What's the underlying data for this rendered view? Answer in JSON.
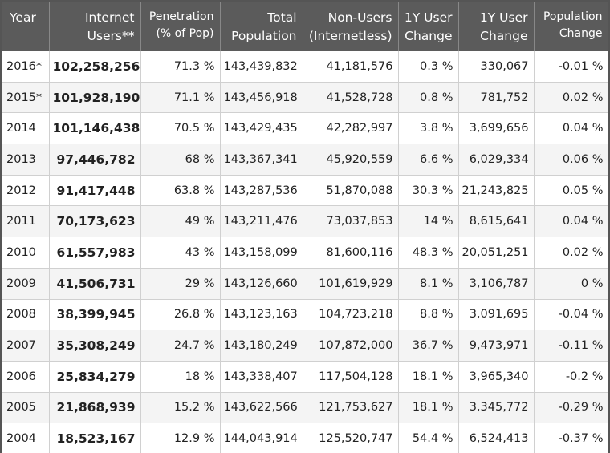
{
  "table": {
    "columns": [
      "Year",
      "Internet Users**",
      "Penetration (% of Pop)",
      "Total Population",
      "Non-Users (Internetless)",
      "1Y User Change",
      "1Y User Change",
      "Population Change"
    ],
    "rows": [
      [
        "2016*",
        "102,258,256",
        "71.3 %",
        "143,439,832",
        "41,181,576",
        "0.3 %",
        "330,067",
        "-0.01 %"
      ],
      [
        "2015*",
        "101,928,190",
        "71.1 %",
        "143,456,918",
        "41,528,728",
        "0.8 %",
        "781,752",
        "0.02 %"
      ],
      [
        "2014",
        "101,146,438",
        "70.5 %",
        "143,429,435",
        "42,282,997",
        "3.8 %",
        "3,699,656",
        "0.04 %"
      ],
      [
        "2013",
        "97,446,782",
        "68 %",
        "143,367,341",
        "45,920,559",
        "6.6 %",
        "6,029,334",
        "0.06 %"
      ],
      [
        "2012",
        "91,417,448",
        "63.8 %",
        "143,287,536",
        "51,870,088",
        "30.3 %",
        "21,243,825",
        "0.05 %"
      ],
      [
        "2011",
        "70,173,623",
        "49 %",
        "143,211,476",
        "73,037,853",
        "14 %",
        "8,615,641",
        "0.04 %"
      ],
      [
        "2010",
        "61,557,983",
        "43 %",
        "143,158,099",
        "81,600,116",
        "48.3 %",
        "20,051,251",
        "0.02 %"
      ],
      [
        "2009",
        "41,506,731",
        "29 %",
        "143,126,660",
        "101,619,929",
        "8.1 %",
        "3,106,787",
        "0 %"
      ],
      [
        "2008",
        "38,399,945",
        "26.8 %",
        "143,123,163",
        "104,723,218",
        "8.8 %",
        "3,091,695",
        "-0.04 %"
      ],
      [
        "2007",
        "35,308,249",
        "24.7 %",
        "143,180,249",
        "107,872,000",
        "36.7 %",
        "9,473,971",
        "-0.11 %"
      ],
      [
        "2006",
        "25,834,279",
        "18 %",
        "143,338,407",
        "117,504,128",
        "18.1 %",
        "3,965,340",
        "-0.2 %"
      ],
      [
        "2005",
        "21,868,939",
        "15.2 %",
        "143,622,566",
        "121,753,627",
        "18.1 %",
        "3,345,772",
        "-0.29 %"
      ],
      [
        "2004",
        "18,523,167",
        "12.9 %",
        "144,043,914",
        "125,520,747",
        "54.4 %",
        "6,524,413",
        "-0.37 %"
      ]
    ]
  }
}
